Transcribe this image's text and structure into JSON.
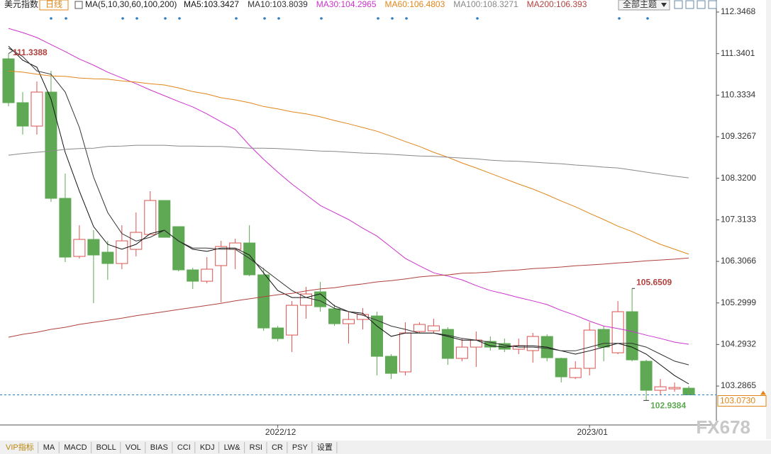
{
  "chart_data": {
    "type": "candlestick",
    "title": "美元指数",
    "period": "日线",
    "ma_params": "MA(5,10,30,60,100,200)",
    "theme_button": "全部主题",
    "watermark": "FX678",
    "tabs": [
      "VIP指标",
      "MA",
      "MACD",
      "BOLL",
      "VOL",
      "BIAS",
      "CCI",
      "KDJ",
      "LW&",
      "RSI",
      "CR",
      "PSY",
      "设置"
    ],
    "categories": [
      null,
      null,
      null,
      null,
      null,
      null,
      null,
      null,
      null,
      null,
      null,
      null,
      null,
      null,
      null,
      null,
      null,
      null,
      null,
      "2022/12",
      null,
      null,
      null,
      null,
      null,
      null,
      null,
      null,
      null,
      null,
      null,
      null,
      null,
      null,
      null,
      null,
      null,
      null,
      null,
      null,
      null,
      "2023/01",
      null,
      null,
      null,
      null,
      null,
      null,
      null
    ],
    "open": [
      111.214,
      110.151,
      109.584,
      110.408,
      107.834,
      106.427,
      106.839,
      106.53,
      106.255,
      106.598,
      106.959,
      107.782,
      107.148,
      106.101,
      105.826,
      106.204,
      106.598,
      106.753,
      105.981,
      104.694,
      104.522,
      105.243,
      105.569,
      105.157,
      104.797,
      104.9,
      104.985,
      104.007,
      103.63,
      104.608,
      104.625,
      104.659,
      103.956,
      104.23,
      104.368,
      104.316,
      104.179,
      104.145,
      104.488,
      103.956,
      103.492,
      103.716,
      104.659,
      104.093,
      105.088,
      103.887,
      103.184,
      103.218,
      103.235
    ],
    "high": [
      111.3388,
      110.408,
      110.665,
      110.923,
      108.435,
      107.182,
      107.062,
      106.804,
      107.182,
      107.491,
      108.006,
      107.782,
      107.148,
      106.152,
      106.41,
      106.804,
      106.856,
      107.182,
      106.152,
      104.745,
      105.346,
      105.689,
      105.809,
      105.26,
      105.088,
      105.174,
      105.088,
      104.059,
      104.831,
      104.831,
      104.917,
      104.711,
      104.436,
      104.608,
      104.488,
      104.436,
      104.436,
      104.574,
      104.539,
      103.973,
      103.887,
      104.831,
      104.745,
      105.346,
      105.6509,
      103.921,
      103.458,
      103.372,
      103.287
    ],
    "low": [
      110.065,
      109.378,
      109.378,
      107.748,
      106.29,
      106.375,
      105.294,
      105.861,
      106.118,
      106.427,
      106.959,
      106.89,
      106.066,
      105.637,
      105.775,
      105.311,
      106.118,
      105.946,
      104.625,
      104.368,
      104.11,
      104.917,
      105.088,
      104.745,
      104.316,
      104.659,
      103.544,
      103.458,
      103.544,
      104.574,
      104.574,
      103.801,
      103.887,
      103.75,
      104.145,
      104.11,
      104.059,
      103.853,
      103.887,
      103.372,
      103.458,
      103.544,
      103.887,
      104.059,
      103.887,
      102.9384,
      103.063,
      103.149,
      103.063
    ],
    "close": [
      110.151,
      109.584,
      110.408,
      107.834,
      106.41,
      106.839,
      106.461,
      106.255,
      106.804,
      107.01,
      107.782,
      106.89,
      106.101,
      105.826,
      106.118,
      106.667,
      106.753,
      105.981,
      104.694,
      104.436,
      105.243,
      105.517,
      105.208,
      104.797,
      104.9,
      105.02,
      104.007,
      103.595,
      104.574,
      104.779,
      104.745,
      103.956,
      104.23,
      104.402,
      104.23,
      104.179,
      104.265,
      104.488,
      103.973,
      103.51,
      103.716,
      104.642,
      104.23,
      105.088,
      103.921,
      103.184,
      103.269,
      103.252,
      103.073
    ],
    "last_close_label": "103.0730",
    "up_color": "#d9534f",
    "down_color": "#5fa954",
    "series": [
      {
        "name": "MA5:103.3427",
        "color": "#111111",
        "values": [
          111.52,
          111.18,
          111.01,
          110.24,
          108.95,
          108.01,
          107.15,
          106.72,
          106.6,
          106.72,
          106.98,
          107.06,
          106.8,
          106.6,
          106.55,
          106.63,
          106.63,
          106.46,
          106.03,
          105.6,
          105.43,
          105.43,
          105.52,
          105.23,
          105.09,
          105.05,
          104.74,
          104.49,
          104.57,
          104.57,
          104.57,
          104.49,
          104.4,
          104.4,
          104.26,
          104.23,
          104.26,
          104.26,
          104.23,
          104.14,
          104.06,
          104.14,
          104.23,
          104.32,
          104.23,
          104.06,
          103.8,
          103.54,
          103.34
        ]
      },
      {
        "name": "MA10:103.8039",
        "color": "#333333",
        "values": [
          111.47,
          111.27,
          110.92,
          110.84,
          110.41,
          109.55,
          108.35,
          107.49,
          106.98,
          106.8,
          106.89,
          107.06,
          106.8,
          106.63,
          106.63,
          106.6,
          106.6,
          106.38,
          106.12,
          105.86,
          105.6,
          105.43,
          105.35,
          105.17,
          105.09,
          105.0,
          104.88,
          104.74,
          104.66,
          104.57,
          104.57,
          104.52,
          104.44,
          104.4,
          104.35,
          104.28,
          104.23,
          104.23,
          104.2,
          104.14,
          104.14,
          104.23,
          104.32,
          104.32,
          104.32,
          104.23,
          104.06,
          103.89,
          103.8
        ]
      },
      {
        "name": "MA30:104.2965",
        "color": "#cc33cc",
        "values": [
          111.95,
          111.85,
          111.73,
          111.56,
          111.39,
          111.21,
          111.06,
          110.89,
          110.75,
          110.61,
          110.46,
          110.32,
          110.18,
          110.05,
          109.88,
          109.69,
          109.5,
          109.12,
          108.78,
          108.47,
          108.18,
          107.92,
          107.66,
          107.49,
          107.32,
          107.11,
          106.92,
          106.65,
          106.38,
          106.2,
          106.03,
          105.95,
          105.86,
          105.72,
          105.6,
          105.52,
          105.43,
          105.35,
          105.26,
          105.12,
          105.0,
          104.86,
          104.74,
          104.68,
          104.61,
          104.52,
          104.44,
          104.35,
          104.3
        ]
      },
      {
        "name": "MA60:106.4803",
        "color": "#e0861a",
        "values": [
          110.92,
          110.89,
          110.84,
          110.8,
          110.79,
          110.75,
          110.73,
          110.72,
          110.68,
          110.65,
          110.61,
          110.58,
          110.51,
          110.42,
          110.36,
          110.27,
          110.22,
          110.15,
          110.06,
          110.0,
          109.93,
          109.88,
          109.81,
          109.72,
          109.64,
          109.55,
          109.46,
          109.34,
          109.21,
          109.09,
          108.95,
          108.83,
          108.69,
          108.57,
          108.44,
          108.31,
          108.18,
          108.06,
          107.92,
          107.77,
          107.63,
          107.47,
          107.32,
          107.16,
          107.03,
          106.87,
          106.72,
          106.6,
          106.48
        ]
      },
      {
        "name": "MA100:108.3271",
        "color": "#888888",
        "values": [
          108.88,
          108.92,
          108.95,
          108.98,
          109.02,
          109.04,
          109.05,
          109.09,
          109.1,
          109.12,
          109.12,
          109.12,
          109.1,
          109.1,
          109.09,
          109.09,
          109.07,
          109.05,
          109.05,
          109.04,
          109.02,
          109.0,
          108.98,
          108.97,
          108.95,
          108.93,
          108.92,
          108.9,
          108.88,
          108.86,
          108.85,
          108.83,
          108.81,
          108.79,
          108.76,
          108.74,
          108.73,
          108.71,
          108.69,
          108.67,
          108.64,
          108.62,
          108.59,
          108.57,
          108.52,
          108.47,
          108.42,
          108.37,
          108.33
        ]
      },
      {
        "name": "MA200:106.393",
        "color": "#b0413e",
        "values": [
          104.47,
          104.54,
          104.59,
          104.66,
          104.71,
          104.78,
          104.83,
          104.88,
          104.93,
          104.99,
          105.04,
          105.09,
          105.14,
          105.19,
          105.24,
          105.29,
          105.35,
          105.4,
          105.45,
          105.5,
          105.53,
          105.59,
          105.64,
          105.67,
          105.72,
          105.76,
          105.81,
          105.84,
          105.88,
          105.93,
          105.96,
          105.98,
          106.02,
          106.03,
          106.05,
          106.08,
          106.1,
          106.13,
          106.15,
          106.17,
          106.2,
          106.22,
          106.24,
          106.27,
          106.29,
          106.32,
          106.34,
          106.36,
          106.39
        ]
      }
    ],
    "ylim": [
      102.344,
      112.467
    ],
    "yticks": [
      112.3468,
      111.3401,
      110.3334,
      109.3267,
      {
        "value": 108.32,
        "label": "108.3200"
      },
      107.3133,
      106.3066,
      105.2999,
      104.2932,
      103.2865
    ]
  }
}
